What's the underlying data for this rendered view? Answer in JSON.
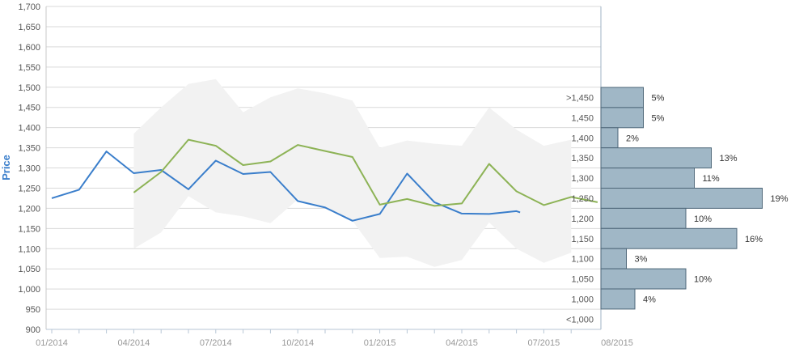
{
  "chart_data": {
    "type": "line",
    "ylabel": "Price",
    "ylim": [
      900,
      1700
    ],
    "y_ticks": [
      "900",
      "950",
      "1,000",
      "1,050",
      "1,100",
      "1,150",
      "1,200",
      "1,250",
      "1,300",
      "1,350",
      "1,400",
      "1,450",
      "1,500",
      "1,550",
      "1,600",
      "1,650",
      "1,700"
    ],
    "x_tick_labels": [
      "01/2014",
      "04/2014",
      "07/2014",
      "10/2014",
      "01/2015",
      "04/2015",
      "07/2015",
      "08/2015"
    ],
    "x_months": [
      "2014-01",
      "2014-02",
      "2014-03",
      "2014-04",
      "2014-05",
      "2014-06",
      "2014-07",
      "2014-08",
      "2014-09",
      "2014-10",
      "2014-11",
      "2014-12",
      "2015-01",
      "2015-02",
      "2015-03",
      "2015-04",
      "2015-05",
      "2015-06",
      "2015-07",
      "2015-08"
    ],
    "series": [
      {
        "color": "#3a7ecb",
        "points": [
          [
            "2014-01",
            1225
          ],
          [
            "2014-02",
            1246
          ],
          [
            "2014-03",
            1341
          ],
          [
            "2014-04",
            1287
          ],
          [
            "2014-05",
            1295
          ],
          [
            "2014-06",
            1247
          ],
          [
            "2014-07",
            1318
          ],
          [
            "2014-08",
            1285
          ],
          [
            "2014-09",
            1290
          ],
          [
            "2014-10",
            1218
          ],
          [
            "2014-11",
            1202
          ],
          [
            "2014-12",
            1169
          ],
          [
            "2015-01",
            1186
          ],
          [
            "2015-02",
            1286
          ],
          [
            "2015-03",
            1215
          ],
          [
            "2015-04",
            1187
          ],
          [
            "2015-05",
            1186
          ],
          [
            "2015-06",
            1193
          ],
          [
            "2015-06-05",
            1190
          ]
        ]
      },
      {
        "color": "#8db356",
        "points": [
          [
            "2014-04",
            1239
          ],
          [
            "2014-05",
            1290
          ],
          [
            "2014-06",
            1370
          ],
          [
            "2014-07",
            1355
          ],
          [
            "2014-08",
            1307
          ],
          [
            "2014-09",
            1316
          ],
          [
            "2014-10",
            1357
          ],
          [
            "2014-11",
            1342
          ],
          [
            "2014-12",
            1327
          ],
          [
            "2015-01",
            1209
          ],
          [
            "2015-02",
            1223
          ],
          [
            "2015-03",
            1206
          ],
          [
            "2015-04",
            1212
          ],
          [
            "2015-05",
            1310
          ],
          [
            "2015-06",
            1242
          ],
          [
            "2015-07",
            1208
          ],
          [
            "2015-08",
            1228
          ],
          [
            "2015-08-30",
            1215
          ]
        ]
      }
    ],
    "range_band": {
      "color": "#f2f2f2",
      "upper": [
        [
          "2014-04",
          1385
        ],
        [
          "2014-05",
          1450
        ],
        [
          "2014-06",
          1508
        ],
        [
          "2014-07",
          1520
        ],
        [
          "2014-08",
          1438
        ],
        [
          "2014-09",
          1475
        ],
        [
          "2014-10",
          1497
        ],
        [
          "2014-11",
          1485
        ],
        [
          "2014-12",
          1467
        ],
        [
          "2015-01",
          1350
        ],
        [
          "2015-02",
          1368
        ],
        [
          "2015-03",
          1360
        ],
        [
          "2015-04",
          1355
        ],
        [
          "2015-05",
          1450
        ],
        [
          "2015-06",
          1395
        ],
        [
          "2015-07",
          1355
        ],
        [
          "2015-08",
          1370
        ]
      ],
      "lower": [
        [
          "2014-04",
          1100
        ],
        [
          "2014-05",
          1140
        ],
        [
          "2014-06",
          1230
        ],
        [
          "2014-07",
          1190
        ],
        [
          "2014-08",
          1180
        ],
        [
          "2014-09",
          1163
        ],
        [
          "2014-10",
          1222
        ],
        [
          "2014-11",
          1201
        ],
        [
          "2014-12",
          1169
        ],
        [
          "2015-01",
          1077
        ],
        [
          "2015-02",
          1080
        ],
        [
          "2015-03",
          1055
        ],
        [
          "2015-04",
          1072
        ],
        [
          "2015-05",
          1165
        ],
        [
          "2015-06",
          1100
        ],
        [
          "2015-07",
          1065
        ],
        [
          "2015-08",
          1090
        ]
      ]
    },
    "distribution": {
      "color": "#a0b7c6",
      "bins": [
        {
          "label": ">1,450",
          "percent": 5,
          "value_label": "5%"
        },
        {
          "label": "1,450",
          "percent": 5,
          "value_label": "5%"
        },
        {
          "label": "1,400",
          "percent": 2,
          "value_label": "2%"
        },
        {
          "label": "1,350",
          "percent": 13,
          "value_label": "13%"
        },
        {
          "label": "1,300",
          "percent": 11,
          "value_label": "11%"
        },
        {
          "label": "1,250",
          "percent": 19,
          "value_label": "19%"
        },
        {
          "label": "1,200",
          "percent": 10,
          "value_label": "10%"
        },
        {
          "label": "1,150",
          "percent": 16,
          "value_label": "16%"
        },
        {
          "label": "1,100",
          "percent": 3,
          "value_label": "3%"
        },
        {
          "label": "1,050",
          "percent": 10,
          "value_label": "10%"
        },
        {
          "label": "1,000",
          "percent": 4,
          "value_label": "4%"
        },
        {
          "label": "<1,000",
          "percent": 0,
          "value_label": ""
        }
      ]
    },
    "grid": true,
    "legend": "none"
  }
}
